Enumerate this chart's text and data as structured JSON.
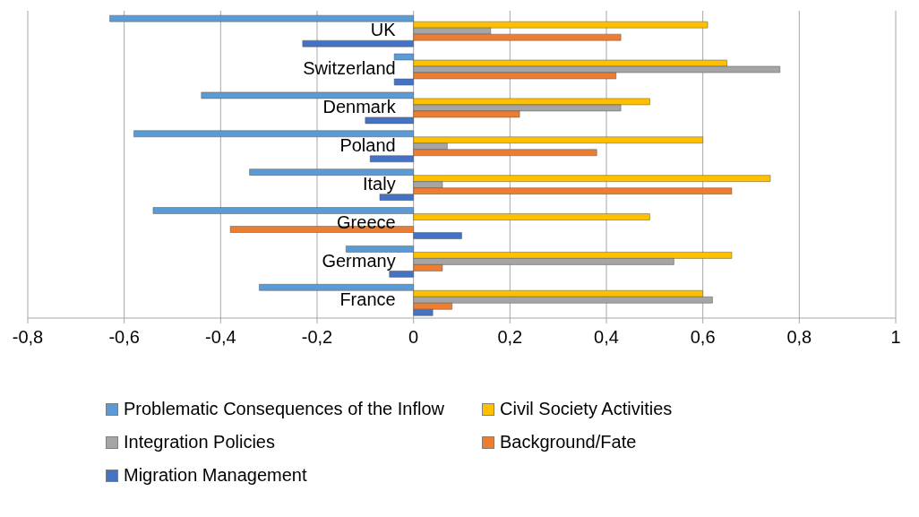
{
  "chart_data": {
    "type": "bar",
    "orientation": "horizontal",
    "categories": [
      "UK",
      "Switzerland",
      "Denmark",
      "Poland",
      "Italy",
      "Greece",
      "Germany",
      "France"
    ],
    "series": [
      {
        "name": "Problematic Consequences of the Inflow",
        "color": "#5b9bd5",
        "values": [
          -0.63,
          -0.04,
          -0.44,
          -0.58,
          -0.34,
          -0.54,
          -0.14,
          -0.32
        ]
      },
      {
        "name": "Civil Society Activities",
        "color": "#ffc000",
        "values": [
          0.61,
          0.65,
          0.49,
          0.6,
          0.74,
          0.49,
          0.66,
          0.6
        ]
      },
      {
        "name": "Integration Policies",
        "color": "#a5a5a5",
        "values": [
          0.16,
          0.76,
          0.43,
          0.07,
          0.06,
          null,
          0.54,
          0.62
        ]
      },
      {
        "name": "Background/Fate",
        "color": "#ed7d31",
        "values": [
          0.43,
          0.42,
          0.22,
          0.38,
          0.66,
          -0.38,
          0.06,
          0.08
        ]
      },
      {
        "name": "Migration Management",
        "color": "#4472c4",
        "values": [
          -0.23,
          -0.04,
          -0.1,
          -0.09,
          -0.07,
          0.1,
          -0.05,
          0.04
        ]
      }
    ],
    "xlim": [
      -0.8,
      1
    ],
    "xticks": [
      {
        "value": -0.8,
        "label": "-0,8"
      },
      {
        "value": -0.6,
        "label": "-0,6"
      },
      {
        "value": -0.4,
        "label": "-0,4"
      },
      {
        "value": -0.2,
        "label": "-0,2"
      },
      0,
      {
        "value": 0.2,
        "label": "0,2"
      },
      {
        "value": 0.4,
        "label": "0,4"
      },
      {
        "value": 0.6,
        "label": "0,6"
      },
      {
        "value": 0.8,
        "label": "0,8"
      },
      1
    ],
    "grid": "x",
    "legend": "bottom"
  }
}
